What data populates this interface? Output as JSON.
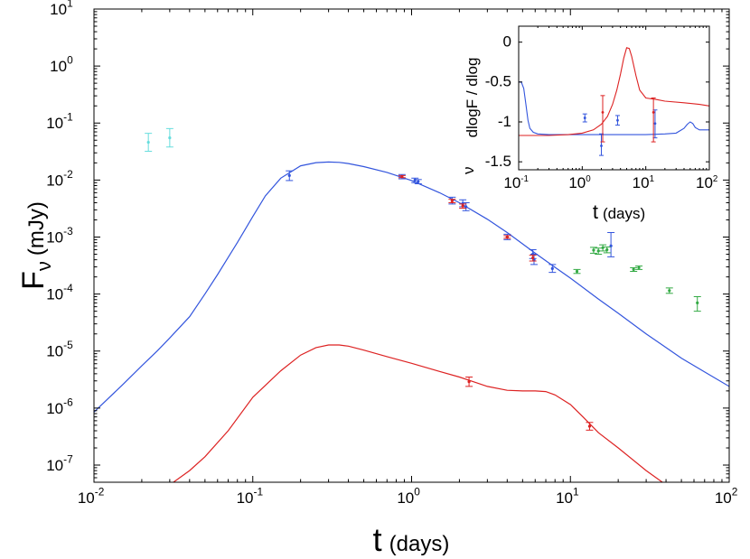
{
  "chart_data": [
    {
      "type": "line",
      "scale": "log-log",
      "xlabel": {
        "main": "t",
        "unit": "(days)"
      },
      "ylabel": {
        "main": "F",
        "sub": "ν",
        "unit": "(mJy)"
      },
      "xlim": [
        0.01,
        100
      ],
      "ylim": [
        5e-08,
        10
      ],
      "x_ticks": [
        {
          "value": 0.01,
          "base": "10",
          "exp": "-2"
        },
        {
          "value": 0.1,
          "base": "10",
          "exp": "-1"
        },
        {
          "value": 1,
          "base": "10",
          "exp": "0"
        },
        {
          "value": 10,
          "base": "10",
          "exp": "1"
        },
        {
          "value": 100,
          "base": "10",
          "exp": "2"
        }
      ],
      "y_ticks": [
        {
          "value": 1e-07,
          "base": "10",
          "exp": "-7"
        },
        {
          "value": 1e-06,
          "base": "10",
          "exp": "-6"
        },
        {
          "value": 1e-05,
          "base": "10",
          "exp": "-5"
        },
        {
          "value": 0.0001,
          "base": "10",
          "exp": "-4"
        },
        {
          "value": 0.001,
          "base": "10",
          "exp": "-3"
        },
        {
          "value": 0.01,
          "base": "10",
          "exp": "-2"
        },
        {
          "value": 0.1,
          "base": "10",
          "exp": "-1"
        },
        {
          "value": 1,
          "base": "10",
          "exp": "0"
        },
        {
          "value": 10,
          "base": "10",
          "exp": "1"
        }
      ],
      "series": [
        {
          "name": "model-blue",
          "color": "#3355dd",
          "kind": "line",
          "x": [
            0.01,
            0.015,
            0.02,
            0.025,
            0.03,
            0.04,
            0.05,
            0.06,
            0.08,
            0.1,
            0.12,
            0.15,
            0.2,
            0.25,
            0.3,
            0.35,
            0.4,
            0.5,
            0.7,
            1.0,
            1.5,
            2,
            3,
            4,
            6,
            8,
            10,
            15,
            20,
            30,
            50,
            70,
            100
          ],
          "y": [
            8.5e-07,
            2.5e-06,
            5.5e-06,
            1e-05,
            1.7e-05,
            4e-05,
            0.0001,
            0.00022,
            0.0008,
            0.0023,
            0.0053,
            0.0108,
            0.0178,
            0.0202,
            0.0207,
            0.0204,
            0.0195,
            0.0172,
            0.0136,
            0.0098,
            0.006,
            0.004,
            0.00205,
            0.0012,
            0.00052,
            0.000295,
            0.00019,
            8.2e-05,
            4.6e-05,
            2e-05,
            7.5e-06,
            4.3e-06,
            2.4e-06
          ]
        },
        {
          "name": "model-red",
          "color": "#dd2222",
          "kind": "line",
          "x": [
            0.03,
            0.04,
            0.05,
            0.07,
            0.1,
            0.15,
            0.2,
            0.25,
            0.3,
            0.35,
            0.4,
            0.5,
            0.7,
            1.0,
            1.5,
            2,
            2.5,
            3,
            4,
            5,
            6,
            7,
            8,
            10,
            12,
            15,
            20,
            30,
            40
          ],
          "y": [
            4.5e-08,
            8e-08,
            1.4e-07,
            4e-07,
            1.55e-06,
            4.5e-06,
            8.5e-06,
            1.15e-05,
            1.28e-05,
            1.28e-05,
            1.22e-05,
            1.04e-05,
            8e-06,
            6.1e-06,
            4.4e-06,
            3.5e-06,
            2.85e-06,
            2.4e-06,
            2.05e-06,
            2e-06,
            2e-06,
            1.95e-06,
            1.7e-06,
            1.15e-06,
            7e-07,
            3.7e-07,
            2e-07,
            8e-08,
            4.5e-08
          ]
        },
        {
          "name": "data-blue",
          "color": "#3355dd",
          "kind": "errorbar",
          "x": [
            0.17,
            0.87,
            1.05,
            1.1,
            1.8,
            2.1,
            2.2,
            4.0,
            5.8,
            5.9,
            7.7,
            18.0
          ],
          "y": [
            0.012,
            0.0115,
            0.01,
            0.0094,
            0.0044,
            0.0039,
            0.0034,
            0.001,
            0.0005,
            0.0004,
            0.00028,
            0.0007
          ],
          "err": [
            [
              0.0098,
              0.0145
            ],
            [
              0.0105,
              0.0125
            ],
            [
              0.009,
              0.0108
            ],
            [
              0.0086,
              0.0102
            ],
            [
              0.0038,
              0.005
            ],
            [
              0.0034,
              0.0045
            ],
            [
              0.0029,
              0.004
            ],
            [
              0.0009,
              0.00112
            ],
            [
              0.00042,
              0.0006
            ],
            [
              0.00033,
              0.0005
            ],
            [
              0.00024,
              0.00033
            ],
            [
              0.00045,
              0.0012
            ]
          ]
        },
        {
          "name": "data-red",
          "color": "#dd2222",
          "kind": "errorbar",
          "x": [
            0.87,
            1.8,
            2.1,
            4.0,
            5.8,
            2.3,
            13.2
          ],
          "y": [
            0.0115,
            0.0043,
            0.0035,
            0.001,
            0.00043,
            2.9e-06,
            4.8e-07
          ],
          "err": [
            [
              0.011,
              0.012
            ],
            [
              0.004,
              0.0046
            ],
            [
              0.0032,
              0.0038
            ],
            [
              0.00095,
              0.00106
            ],
            [
              0.00038,
              0.00048
            ],
            [
              2.4e-06,
              3.5e-06
            ],
            [
              4.1e-07,
              5.6e-07
            ]
          ]
        },
        {
          "name": "data-green",
          "color": "#33aa44",
          "kind": "errorbar",
          "x": [
            11.0,
            14.0,
            15.0,
            16.0,
            17.0,
            25.0,
            27.0,
            42.0,
            63.0
          ],
          "y": [
            0.00025,
            0.00059,
            0.00057,
            0.00065,
            0.0006,
            0.00027,
            0.00029,
            0.000115,
            7e-05
          ],
          "err": [
            [
              0.00023,
              0.00027
            ],
            [
              0.00052,
              0.00066
            ],
            [
              0.0005,
              0.00064
            ],
            [
              0.00057,
              0.00073
            ],
            [
              0.00053,
              0.00067
            ],
            [
              0.00025,
              0.00029
            ],
            [
              0.00027,
              0.00031
            ],
            [
              0.000103,
              0.000128
            ],
            [
              5e-05,
              9e-05
            ]
          ]
        },
        {
          "name": "data-cyan",
          "color": "#66dddd",
          "kind": "errorbar",
          "x": [
            0.022,
            0.03
          ],
          "y": [
            0.046,
            0.055
          ],
          "err": [
            [
              0.032,
              0.066
            ],
            [
              0.038,
              0.08
            ]
          ]
        }
      ]
    },
    {
      "type": "line",
      "role": "inset",
      "scale": "log-x",
      "xlabel": {
        "main": "t",
        "unit": "(days)"
      },
      "ylabel": {
        "text": "dlogF / dlog",
        "sub": "ν",
        "nu": "ν"
      },
      "xlim": [
        0.1,
        100
      ],
      "ylim": [
        -1.6,
        0.2
      ],
      "x_ticks": [
        {
          "value": 0.1,
          "base": "10",
          "exp": "-1"
        },
        {
          "value": 1,
          "base": "10",
          "exp": "0"
        },
        {
          "value": 10,
          "base": "10",
          "exp": "1"
        },
        {
          "value": 100,
          "base": "10",
          "exp": "2"
        }
      ],
      "y_ticks": [
        {
          "value": 0,
          "label": "0"
        },
        {
          "value": -0.5,
          "label": "-0.5"
        },
        {
          "value": -1,
          "label": "-1"
        },
        {
          "value": -1.5,
          "label": "-1.5"
        }
      ],
      "series": [
        {
          "name": "slope-blue",
          "color": "#3355dd",
          "kind": "line",
          "x": [
            0.1,
            0.11,
            0.12,
            0.13,
            0.14,
            0.15,
            0.17,
            0.2,
            0.3,
            0.5,
            1,
            2,
            5,
            10,
            20,
            30,
            40,
            45,
            50,
            55,
            60,
            70,
            80,
            100
          ],
          "y": [
            -0.5,
            -0.5,
            -0.58,
            -0.78,
            -0.98,
            -1.08,
            -1.13,
            -1.15,
            -1.16,
            -1.16,
            -1.16,
            -1.16,
            -1.16,
            -1.16,
            -1.15,
            -1.14,
            -1.08,
            -1.03,
            -1.0,
            -1.02,
            -1.07,
            -1.1,
            -1.1,
            -1.1
          ]
        },
        {
          "name": "slope-red",
          "color": "#dd2222",
          "kind": "line",
          "x": [
            0.1,
            0.3,
            0.6,
            1,
            1.5,
            2,
            2.5,
            3,
            3.5,
            4,
            4.5,
            5,
            5.5,
            6,
            7,
            8,
            10,
            15,
            20,
            40,
            70,
            100
          ],
          "y": [
            -1.17,
            -1.17,
            -1.16,
            -1.14,
            -1.1,
            -1.03,
            -0.93,
            -0.78,
            -0.6,
            -0.4,
            -0.2,
            -0.07,
            -0.08,
            -0.18,
            -0.42,
            -0.6,
            -0.7,
            -0.72,
            -0.74,
            -0.76,
            -0.78,
            -0.8
          ]
        },
        {
          "name": "slope-data-blue",
          "color": "#3355dd",
          "kind": "errorbar",
          "x": [
            1.1,
            2.0,
            3.6,
            14.0
          ],
          "y": [
            -0.95,
            -1.3,
            -0.98,
            -1.02
          ],
          "err": [
            [
              -1.0,
              -0.9
            ],
            [
              -1.42,
              -1.15
            ],
            [
              -1.04,
              -0.92
            ],
            [
              -1.2,
              -0.85
            ]
          ]
        },
        {
          "name": "slope-data-red",
          "color": "#dd2222",
          "kind": "errorbar",
          "x": [
            2.1,
            13.2
          ],
          "y": [
            -0.88,
            -0.88
          ],
          "err": [
            [
              -1.25,
              -0.67
            ],
            [
              -1.25,
              -0.7
            ]
          ]
        }
      ]
    }
  ]
}
